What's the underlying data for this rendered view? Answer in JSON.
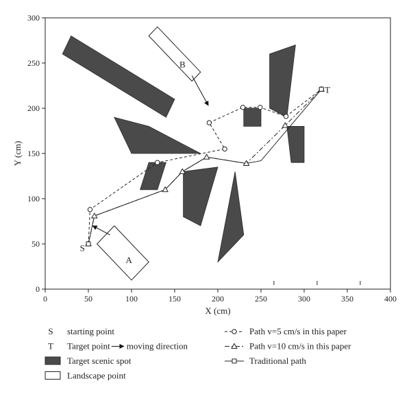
{
  "chart_data": {
    "type": "scatter",
    "xlabel": "X (cm)",
    "ylabel": "Y (cm)",
    "xlim": [
      0,
      400
    ],
    "ylim": [
      0,
      300
    ],
    "xticks": [
      0,
      50,
      100,
      150,
      200,
      250,
      300,
      350,
      400
    ],
    "yticks": [
      0,
      50,
      100,
      150,
      200,
      250,
      300
    ],
    "grid": false,
    "legend_position": "bottom",
    "colors": {
      "obstacle": "#4a4a4a",
      "line": "#222222",
      "landscape_fill": "#ffffff"
    },
    "point_labels": [
      {
        "text": "S",
        "x": 43,
        "y": 45
      },
      {
        "text": "T",
        "x": 327,
        "y": 220
      },
      {
        "text": "A",
        "x": 97,
        "y": 32
      },
      {
        "text": "B",
        "x": 159,
        "y": 248
      }
    ],
    "series": [
      {
        "name": "Path v=5 cm/s in this paper",
        "marker": "circle",
        "style": "dashed",
        "points": [
          [
            50,
            50
          ],
          [
            52,
            88
          ],
          [
            130,
            140
          ],
          [
            208,
            155
          ],
          [
            190,
            184
          ],
          [
            229,
            201
          ],
          [
            249,
            201
          ],
          [
            279,
            191
          ],
          [
            320,
            221
          ]
        ]
      },
      {
        "name": "Path v=10 cm/s in this paper",
        "marker": "triangle",
        "style": "dashdot",
        "points": [
          [
            50,
            50
          ],
          [
            57,
            81
          ],
          [
            139,
            110
          ],
          [
            159,
            130
          ],
          [
            187,
            146
          ],
          [
            233,
            139
          ],
          [
            278,
            181
          ],
          [
            320,
            221
          ]
        ]
      },
      {
        "name": "Traditional path",
        "marker": "square",
        "style": "solid",
        "points": [
          [
            50,
            50
          ],
          [
            57,
            81
          ],
          [
            139,
            110
          ],
          [
            159,
            130
          ],
          [
            187,
            146
          ],
          [
            233,
            139
          ],
          [
            250,
            142
          ],
          [
            320,
            221
          ]
        ]
      }
    ],
    "target_scenic_spots": [
      [
        [
          20,
          260
        ],
        [
          30,
          280
        ],
        [
          150,
          210
        ],
        [
          140,
          190
        ]
      ],
      [
        [
          80,
          190
        ],
        [
          120,
          180
        ],
        [
          180,
          150
        ],
        [
          100,
          150
        ]
      ],
      [
        [
          120,
          140
        ],
        [
          140,
          140
        ],
        [
          130,
          110
        ],
        [
          110,
          110
        ]
      ],
      [
        [
          160,
          130
        ],
        [
          200,
          135
        ],
        [
          180,
          70
        ],
        [
          160,
          80
        ]
      ],
      [
        [
          200,
          30
        ],
        [
          220,
          130
        ],
        [
          230,
          60
        ]
      ],
      [
        [
          230,
          180
        ],
        [
          250,
          180
        ],
        [
          250,
          200
        ],
        [
          230,
          200
        ]
      ],
      [
        [
          260,
          260
        ],
        [
          290,
          270
        ],
        [
          280,
          190
        ],
        [
          260,
          200
        ]
      ],
      [
        [
          280,
          180
        ],
        [
          300,
          180
        ],
        [
          300,
          140
        ],
        [
          285,
          140
        ]
      ]
    ],
    "landscape_points": [
      [
        [
          60,
          50
        ],
        [
          80,
          70
        ],
        [
          120,
          30
        ],
        [
          100,
          10
        ]
      ],
      [
        [
          120,
          280
        ],
        [
          130,
          290
        ],
        [
          180,
          240
        ],
        [
          170,
          230
        ]
      ]
    ],
    "moving_direction_arrows": [
      {
        "from": [
          75,
          60
        ],
        "to": [
          55,
          70
        ]
      },
      {
        "from": [
          170,
          236
        ],
        "to": [
          189,
          203
        ]
      }
    ],
    "axis_ticks_top": [
      265,
      315,
      365
    ],
    "legend": [
      {
        "symbol": "S",
        "text": "starting point"
      },
      {
        "symbol": "T",
        "text": "Target point",
        "extra": "moving direction"
      },
      {
        "symbol": "filled-rect",
        "text": "Target scenic spot"
      },
      {
        "symbol": "open-rect",
        "text": "Landscape point"
      },
      {
        "symbol": "circle-line",
        "text": "Path v=5 cm/s in this paper"
      },
      {
        "symbol": "triangle-line",
        "text": "Path v=10 cm/s in this paper"
      },
      {
        "symbol": "square-line",
        "text": "Traditional path"
      }
    ]
  }
}
